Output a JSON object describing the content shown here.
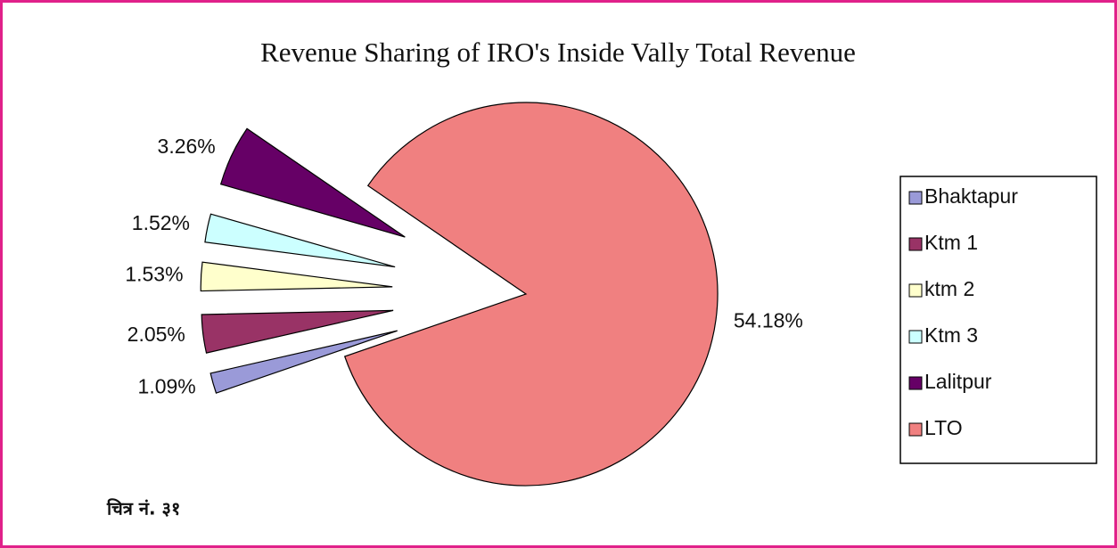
{
  "chart_data": {
    "type": "pie",
    "title": "Revenue Sharing of IRO's Inside Vally Total Revenue",
    "categories": [
      "Bhaktapur",
      "Ktm 1",
      "ktm 2",
      "Ktm 3",
      "Lalitpur",
      "LTO"
    ],
    "values": [
      1.09,
      2.05,
      1.53,
      1.52,
      3.26,
      54.18
    ],
    "value_labels": [
      "1.09%",
      "2.05%",
      "1.53%",
      "1.52%",
      "3.26%",
      "54.18%"
    ],
    "colors": [
      "#9a9ad8",
      "#993366",
      "#ffffcc",
      "#ccffff",
      "#660066",
      "#f08080"
    ],
    "legend": "right"
  },
  "caption": "चित्र नं. ३१"
}
